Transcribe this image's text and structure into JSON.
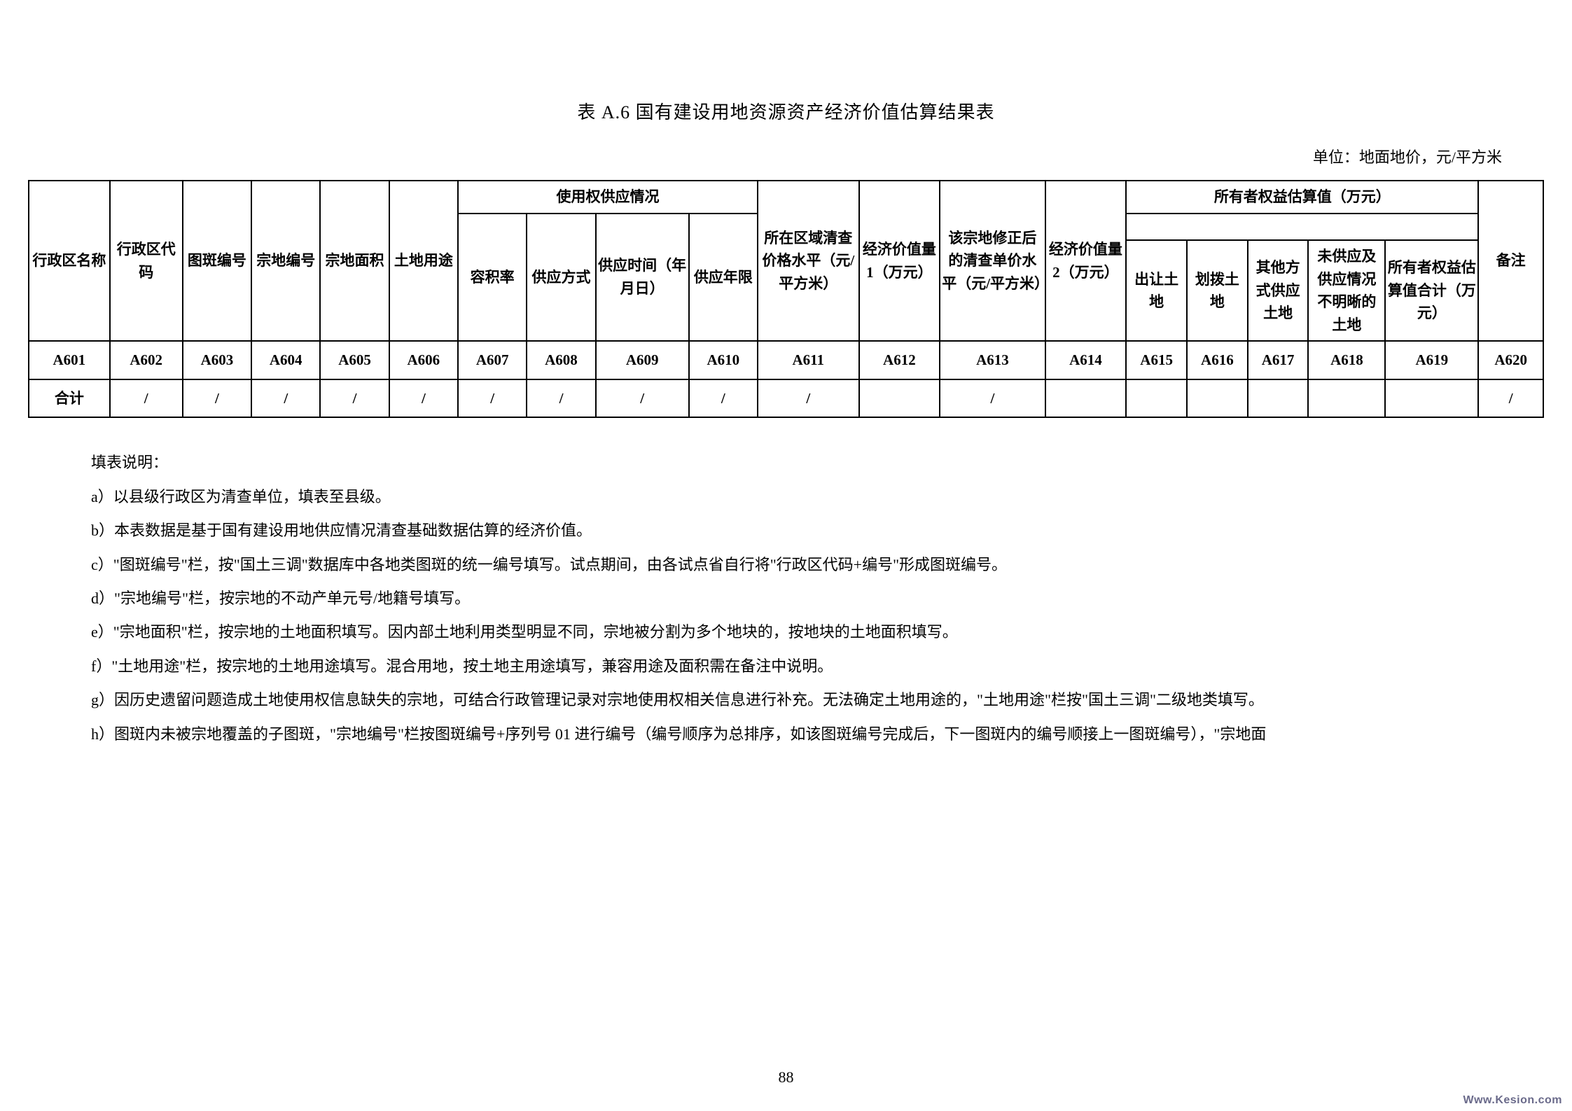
{
  "title": "表 A.6  国有建设用地资源资产经济价值估算结果表",
  "unit": "单位：地面地价，元/平方米",
  "headers": {
    "h1": "行政区名称",
    "h2": "行政区代码",
    "h3": "图斑编号",
    "h4": "宗地编号",
    "h5": "宗地面积",
    "h6": "土地用途",
    "h7_group": "使用权供应情况",
    "h7": "容积率",
    "h8": "供应方式",
    "h9": "供应时间（年月日）",
    "h10": "供应年限",
    "h11": "所在区域清查价格水平（元/平方米）",
    "h12": "经济价值量 1（万元）",
    "h13": "该宗地修正后的清查单价水平（元/平方米）",
    "h14": "经济价值量 2（万元）",
    "h15_group": "所有者权益估算值（万元）",
    "h15": "出让土地",
    "h16": "划拨土地",
    "h17": "其他方式供应土地",
    "h18": "未供应及供应情况不明晰的土地",
    "h19": "所有者权益估算值合计（万元）",
    "h20": "备注"
  },
  "idRow": [
    "A601",
    "A602",
    "A603",
    "A604",
    "A605",
    "A606",
    "A607",
    "A608",
    "A609",
    "A610",
    "A611",
    "A612",
    "A613",
    "A614",
    "A615",
    "A616",
    "A617",
    "A618",
    "A619",
    "A620"
  ],
  "sumRow": {
    "label": "合计",
    "cells": [
      "/",
      "/",
      "/",
      "/",
      "/",
      "/",
      "/",
      "/",
      "/",
      "/",
      "",
      "/",
      "",
      "",
      "",
      "",
      "",
      "",
      "/"
    ]
  },
  "notes": {
    "heading": "填表说明：",
    "items": [
      "a）以县级行政区为清查单位，填表至县级。",
      "b）本表数据是基于国有建设用地供应情况清查基础数据估算的经济价值。",
      "c）\"图斑编号\"栏，按\"国土三调\"数据库中各地类图斑的统一编号填写。试点期间，由各试点省自行将\"行政区代码+编号\"形成图斑编号。",
      "d）\"宗地编号\"栏，按宗地的不动产单元号/地籍号填写。",
      "e）\"宗地面积\"栏，按宗地的土地面积填写。因内部土地利用类型明显不同，宗地被分割为多个地块的，按地块的土地面积填写。",
      "f）\"土地用途\"栏，按宗地的土地用途填写。混合用地，按土地主用途填写，兼容用途及面积需在备注中说明。",
      "g）因历史遗留问题造成土地使用权信息缺失的宗地，可结合行政管理记录对宗地使用权相关信息进行补充。无法确定土地用途的，\"土地用途\"栏按\"国土三调\"二级地类填写。",
      "h）图斑内未被宗地覆盖的子图斑，\"宗地编号\"栏按图斑编号+序列号 01 进行编号（编号顺序为总排序，如该图斑编号完成后，下一图斑内的编号顺接上一图斑编号），\"宗地面"
    ]
  },
  "pageNumber": "88",
  "watermark": "Www.Kesion.com",
  "layout": {
    "colWidths": [
      4.0,
      3.6,
      3.4,
      3.4,
      3.4,
      3.4,
      3.4,
      3.4,
      4.6,
      3.4,
      5.0,
      4.0,
      5.2,
      4.0,
      3.0,
      3.0,
      3.0,
      3.8,
      4.6,
      3.2
    ]
  }
}
